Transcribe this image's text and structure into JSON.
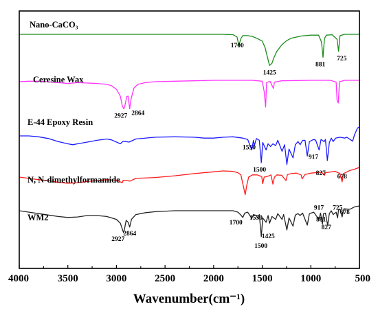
{
  "chart_data": {
    "type": "line",
    "xlabel": "Wavenumber(cm⁻¹)",
    "ylabel": "",
    "xlim": [
      4000,
      500
    ],
    "x_reversed": true,
    "xticks": [
      4000,
      3500,
      3000,
      2500,
      2000,
      1500,
      1000,
      500
    ],
    "grid": false,
    "series": [
      {
        "name": "Nano-CaCO₃",
        "color": "#1a8c1a",
        "points": [
          [
            4000,
            0.0
          ],
          [
            3600,
            0.0
          ],
          [
            3200,
            0.0
          ],
          [
            2800,
            0.0
          ],
          [
            2500,
            0.0
          ],
          [
            2200,
            0.0
          ],
          [
            1900,
            0.0
          ],
          [
            1800,
            -0.1
          ],
          [
            1760,
            -0.6
          ],
          [
            1740,
            -2.6
          ],
          [
            1720,
            -1.0
          ],
          [
            1700,
            -0.3
          ],
          [
            1650,
            -0.3
          ],
          [
            1600,
            -0.5
          ],
          [
            1550,
            -1.0
          ],
          [
            1500,
            -1.6
          ],
          [
            1470,
            -3.2
          ],
          [
            1440,
            -6.0
          ],
          [
            1425,
            -7.3
          ],
          [
            1400,
            -6.8
          ],
          [
            1380,
            -5.5
          ],
          [
            1350,
            -4.0
          ],
          [
            1300,
            -2.5
          ],
          [
            1250,
            -1.5
          ],
          [
            1200,
            -0.9
          ],
          [
            1100,
            -0.4
          ],
          [
            1000,
            -0.2
          ],
          [
            920,
            -0.2
          ],
          [
            890,
            -1.8
          ],
          [
            875,
            -5.4
          ],
          [
            860,
            -1.0
          ],
          [
            840,
            -0.2
          ],
          [
            780,
            -0.1
          ],
          [
            730,
            -1.2
          ],
          [
            715,
            -4.0
          ],
          [
            700,
            -0.3
          ],
          [
            650,
            0.0
          ],
          [
            500,
            0.0
          ]
        ],
        "peak_labels": [
          {
            "x": 1700,
            "label": "1700"
          },
          {
            "x": 1425,
            "label": "1425"
          },
          {
            "x": 881,
            "label": "881"
          },
          {
            "x": 725,
            "label": "725"
          }
        ]
      },
      {
        "name": "Ceresine Wax",
        "color": "#ff33ff",
        "points": [
          [
            4000,
            -0.3
          ],
          [
            3900,
            -0.2
          ],
          [
            3800,
            -0.2
          ],
          [
            3600,
            -0.5
          ],
          [
            3500,
            -0.7
          ],
          [
            3400,
            -0.5
          ],
          [
            3200,
            -0.7
          ],
          [
            3100,
            -0.9
          ],
          [
            3050,
            -1.2
          ],
          [
            3000,
            -2.0
          ],
          [
            2960,
            -3.5
          ],
          [
            2940,
            -5.6
          ],
          [
            2925,
            -6.3
          ],
          [
            2915,
            -5.9
          ],
          [
            2895,
            -3.6
          ],
          [
            2880,
            -3.5
          ],
          [
            2864,
            -6.3
          ],
          [
            2850,
            -4.2
          ],
          [
            2820,
            -1.7
          ],
          [
            2780,
            -0.9
          ],
          [
            2700,
            -0.5
          ],
          [
            2600,
            -0.3
          ],
          [
            2400,
            -0.2
          ],
          [
            2200,
            -0.1
          ],
          [
            2000,
            0.0
          ],
          [
            1800,
            0.0
          ],
          [
            1600,
            0.0
          ],
          [
            1500,
            -0.2
          ],
          [
            1480,
            -2.5
          ],
          [
            1465,
            -5.9
          ],
          [
            1455,
            -0.5
          ],
          [
            1420,
            -0.2
          ],
          [
            1385,
            -1.8
          ],
          [
            1375,
            -0.4
          ],
          [
            1300,
            -0.1
          ],
          [
            1000,
            0.0
          ],
          [
            800,
            0.0
          ],
          [
            740,
            -0.4
          ],
          [
            730,
            -4.5
          ],
          [
            718,
            -5.0
          ],
          [
            705,
            -0.3
          ],
          [
            650,
            0.0
          ],
          [
            500,
            0.0
          ]
        ]
      },
      {
        "name": "E-44 Epoxy Resin",
        "color": "#1a1aff",
        "points": [
          [
            4000,
            0.0
          ],
          [
            3900,
            0.0
          ],
          [
            3800,
            -0.2
          ],
          [
            3700,
            -0.6
          ],
          [
            3600,
            -1.3
          ],
          [
            3500,
            -1.8
          ],
          [
            3450,
            -2.0
          ],
          [
            3400,
            -1.8
          ],
          [
            3300,
            -1.4
          ],
          [
            3200,
            -1.0
          ],
          [
            3100,
            -0.7
          ],
          [
            3050,
            -0.9
          ],
          [
            2960,
            -1.8
          ],
          [
            2930,
            -1.2
          ],
          [
            2870,
            -1.4
          ],
          [
            2800,
            -0.7
          ],
          [
            2600,
            -0.3
          ],
          [
            2400,
            -0.2
          ],
          [
            2200,
            -0.3
          ],
          [
            2100,
            -0.5
          ],
          [
            2000,
            -0.5
          ],
          [
            1900,
            -0.3
          ],
          [
            1800,
            -0.2
          ],
          [
            1700,
            -0.5
          ],
          [
            1650,
            -0.8
          ],
          [
            1608,
            -3.2
          ],
          [
            1590,
            -1.0
          ],
          [
            1581,
            -2.2
          ],
          [
            1560,
            -0.6
          ],
          [
            1530,
            -1.0
          ],
          [
            1510,
            -6.1
          ],
          [
            1495,
            -1.5
          ],
          [
            1460,
            -3.2
          ],
          [
            1440,
            -1.8
          ],
          [
            1415,
            -2.4
          ],
          [
            1390,
            -1.8
          ],
          [
            1362,
            -2.2
          ],
          [
            1340,
            -1.0
          ],
          [
            1296,
            -3.5
          ],
          [
            1270,
            -2.0
          ],
          [
            1247,
            -6.5
          ],
          [
            1225,
            -3.0
          ],
          [
            1183,
            -5.0
          ],
          [
            1160,
            -2.0
          ],
          [
            1132,
            -1.3
          ],
          [
            1110,
            -2.0
          ],
          [
            1085,
            -1.0
          ],
          [
            1060,
            -1.0
          ],
          [
            1037,
            -4.6
          ],
          [
            1015,
            -1.3
          ],
          [
            970,
            -0.8
          ],
          [
            950,
            -1.0
          ],
          [
            915,
            -3.2
          ],
          [
            895,
            -0.8
          ],
          [
            863,
            -1.3
          ],
          [
            850,
            -0.8
          ],
          [
            830,
            -5.6
          ],
          [
            810,
            -1.5
          ],
          [
            790,
            -0.5
          ],
          [
            770,
            -1.3
          ],
          [
            745,
            -0.5
          ],
          [
            700,
            -0.3
          ],
          [
            650,
            -0.5
          ],
          [
            630,
            -0.3
          ],
          [
            570,
            -1.2
          ],
          [
            550,
            0.3
          ],
          [
            520,
            1.8
          ],
          [
            500,
            2.0
          ]
        ],
        "peak_labels": [
          {
            "x": 1550,
            "label": "1550"
          },
          {
            "x": 1500,
            "label": "1500"
          },
          {
            "x": 917,
            "label": "917"
          },
          {
            "x": 827,
            "label": "827"
          }
        ]
      },
      {
        "name": "N, N-dimethylformamide",
        "color": "#ff1a1a",
        "points": [
          [
            4000,
            0.0
          ],
          [
            3900,
            -0.3
          ],
          [
            3800,
            -0.6
          ],
          [
            3700,
            -0.8
          ],
          [
            3600,
            -1.2
          ],
          [
            3500,
            -1.4
          ],
          [
            3400,
            -1.3
          ],
          [
            3300,
            -1.0
          ],
          [
            3200,
            -0.8
          ],
          [
            3100,
            -0.6
          ],
          [
            3000,
            -0.7
          ],
          [
            2940,
            -1.3
          ],
          [
            2930,
            -0.7
          ],
          [
            2860,
            -0.9
          ],
          [
            2800,
            -0.3
          ],
          [
            2600,
            -0.1
          ],
          [
            2400,
            0.3
          ],
          [
            2200,
            0.8
          ],
          [
            2000,
            1.2
          ],
          [
            1900,
            1.4
          ],
          [
            1800,
            1.3
          ],
          [
            1750,
            1.0
          ],
          [
            1720,
            0.5
          ],
          [
            1690,
            -2.5
          ],
          [
            1675,
            -4.0
          ],
          [
            1660,
            -2.0
          ],
          [
            1640,
            0.0
          ],
          [
            1600,
            0.5
          ],
          [
            1550,
            0.5
          ],
          [
            1505,
            0.1
          ],
          [
            1495,
            -1.5
          ],
          [
            1480,
            0.0
          ],
          [
            1440,
            0.2
          ],
          [
            1410,
            0.5
          ],
          [
            1390,
            -1.6
          ],
          [
            1375,
            0.0
          ],
          [
            1350,
            0.5
          ],
          [
            1300,
            0.4
          ],
          [
            1256,
            -0.8
          ],
          [
            1240,
            0.6
          ],
          [
            1200,
            0.8
          ],
          [
            1150,
            0.9
          ],
          [
            1100,
            0.5
          ],
          [
            1090,
            -0.4
          ],
          [
            1060,
            0.6
          ],
          [
            1000,
            0.9
          ],
          [
            900,
            1.1
          ],
          [
            880,
            0.9
          ],
          [
            860,
            0.4
          ],
          [
            850,
            1.0
          ],
          [
            750,
            1.3
          ],
          [
            700,
            0.8
          ],
          [
            678,
            -1.1
          ],
          [
            665,
            0.8
          ],
          [
            600,
            1.5
          ],
          [
            550,
            1.8
          ],
          [
            500,
            2.2
          ]
        ],
        "peak_labels": [
          {
            "x": 678,
            "label": "678"
          }
        ]
      },
      {
        "name": "WM2",
        "color": "#222222",
        "points": [
          [
            4000,
            0.0
          ],
          [
            3900,
            -0.3
          ],
          [
            3800,
            -0.6
          ],
          [
            3700,
            -0.9
          ],
          [
            3600,
            -1.2
          ],
          [
            3500,
            -1.4
          ],
          [
            3400,
            -1.3
          ],
          [
            3300,
            -1.0
          ],
          [
            3200,
            -1.0
          ],
          [
            3100,
            -1.2
          ],
          [
            3050,
            -1.5
          ],
          [
            3000,
            -1.8
          ],
          [
            2960,
            -2.6
          ],
          [
            2940,
            -3.8
          ],
          [
            2927,
            -4.6
          ],
          [
            2915,
            -3.6
          ],
          [
            2900,
            -2.0
          ],
          [
            2880,
            -2.4
          ],
          [
            2864,
            -3.4
          ],
          [
            2845,
            -1.8
          ],
          [
            2800,
            -0.8
          ],
          [
            2700,
            -0.4
          ],
          [
            2600,
            -0.2
          ],
          [
            2400,
            0.0
          ],
          [
            2200,
            0.0
          ],
          [
            2000,
            0.0
          ],
          [
            1800,
            0.0
          ],
          [
            1750,
            -0.3
          ],
          [
            1720,
            -0.9
          ],
          [
            1700,
            -1.4
          ],
          [
            1680,
            -0.5
          ],
          [
            1650,
            -0.3
          ],
          [
            1608,
            -1.6
          ],
          [
            1590,
            -0.8
          ],
          [
            1560,
            -1.0
          ],
          [
            1545,
            -1.6
          ],
          [
            1530,
            -0.8
          ],
          [
            1510,
            -5.4
          ],
          [
            1495,
            -1.5
          ],
          [
            1460,
            -2.4
          ],
          [
            1440,
            -1.0
          ],
          [
            1425,
            -2.6
          ],
          [
            1400,
            -1.2
          ],
          [
            1362,
            -1.8
          ],
          [
            1340,
            -0.6
          ],
          [
            1296,
            -1.8
          ],
          [
            1280,
            -0.8
          ],
          [
            1247,
            -4.0
          ],
          [
            1225,
            -1.5
          ],
          [
            1183,
            -3.2
          ],
          [
            1160,
            -0.9
          ],
          [
            1132,
            -0.6
          ],
          [
            1110,
            -1.0
          ],
          [
            1085,
            -0.5
          ],
          [
            1037,
            -3.0
          ],
          [
            1015,
            -0.6
          ],
          [
            970,
            -0.3
          ],
          [
            917,
            -1.8
          ],
          [
            900,
            -0.5
          ],
          [
            881,
            -2.8
          ],
          [
            870,
            -0.6
          ],
          [
            850,
            -0.5
          ],
          [
            827,
            -3.0
          ],
          [
            810,
            -0.6
          ],
          [
            790,
            0.0
          ],
          [
            770,
            -0.8
          ],
          [
            740,
            -0.3
          ],
          [
            725,
            -1.5
          ],
          [
            715,
            0.2
          ],
          [
            700,
            0.3
          ],
          [
            678,
            -1.3
          ],
          [
            660,
            0.4
          ],
          [
            600,
            0.3
          ],
          [
            550,
            0.8
          ],
          [
            500,
            1.0
          ]
        ],
        "peak_labels": [
          {
            "x": 2927,
            "label": "2927"
          },
          {
            "x": 2864,
            "label": "2864"
          },
          {
            "x": 1700,
            "label": "1700"
          },
          {
            "x": 1550,
            "label": "1550"
          },
          {
            "x": 1500,
            "label": "1500"
          },
          {
            "x": 1425,
            "label": "1425"
          },
          {
            "x": 917,
            "label": "917"
          },
          {
            "x": 881,
            "label": "881"
          },
          {
            "x": 827,
            "label": "827"
          },
          {
            "x": 725,
            "label": "725"
          },
          {
            "x": 678,
            "label": "678"
          }
        ]
      }
    ],
    "extra_peak_labels": [
      {
        "series": 1,
        "x": 2927,
        "label": "2927"
      },
      {
        "series": 1,
        "x": 2864,
        "label": "2864"
      }
    ]
  }
}
